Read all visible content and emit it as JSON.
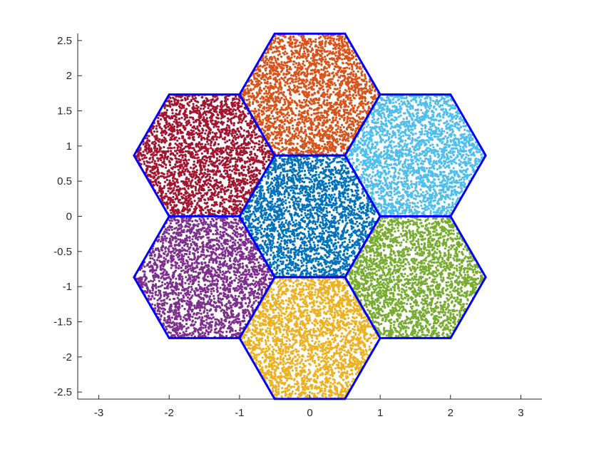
{
  "chart_data": {
    "type": "scatter",
    "title": "",
    "xlabel": "",
    "ylabel": "",
    "xlim": [
      -3.3,
      3.3
    ],
    "ylim": [
      -2.6,
      2.6
    ],
    "xticks": [
      -3,
      -2,
      -1,
      0,
      1,
      2,
      3
    ],
    "xtick_labels": [
      "-3",
      "-2",
      "-1",
      "0",
      "1",
      "2",
      "3"
    ],
    "yticks": [
      -2.5,
      -2,
      -1.5,
      -1,
      -0.5,
      0,
      0.5,
      1,
      1.5,
      2,
      2.5
    ],
    "ytick_labels": [
      "-2.5",
      "-2",
      "-1.5",
      "-1",
      "-0.5",
      "0",
      "0.5",
      "1",
      "1.5",
      "2",
      "2.5"
    ],
    "grid": false,
    "hexagon_radius": 1,
    "hexagon_outline_color": "#0000ff",
    "points_per_hexagon": 2500,
    "series": [
      {
        "center": [
          0,
          0
        ],
        "color": "#0072bd"
      },
      {
        "center": [
          0,
          1.732
        ],
        "color": "#d95319"
      },
      {
        "center": [
          -1.5,
          0.866
        ],
        "color": "#a2142f"
      },
      {
        "center": [
          1.5,
          0.866
        ],
        "color": "#4dbeee"
      },
      {
        "center": [
          -1.5,
          -0.866
        ],
        "color": "#7e2f8e"
      },
      {
        "center": [
          1.5,
          -0.866
        ],
        "color": "#77ac30"
      },
      {
        "center": [
          0,
          -1.732
        ],
        "color": "#edb120"
      }
    ]
  }
}
